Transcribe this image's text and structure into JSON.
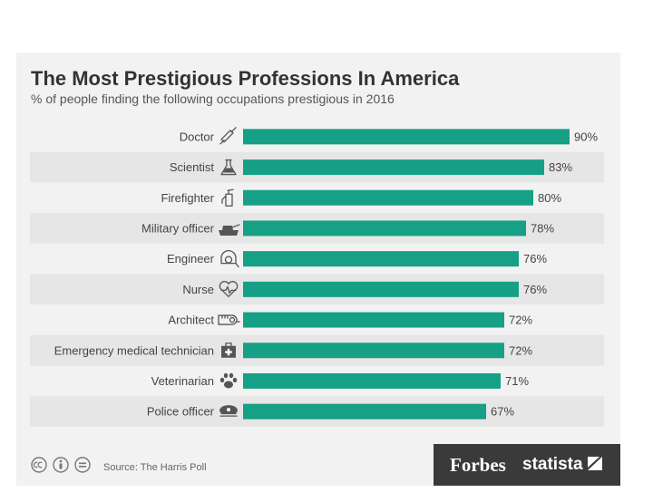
{
  "header": {
    "title": "The Most Prestigious Professions In America",
    "subtitle": "% of people finding the following occupations prestigious in 2016"
  },
  "footer": {
    "source": "Source: The Harris Poll",
    "brand_forbes": "Forbes",
    "brand_statista": "statista"
  },
  "colors": {
    "bar": "#16a085",
    "band": "#e6e6e6",
    "label": "#444444"
  },
  "chart_data": {
    "type": "bar",
    "orientation": "horizontal",
    "categories": [
      "Doctor",
      "Scientist",
      "Firefighter",
      "Military officer",
      "Engineer",
      "Nurse",
      "Architect",
      "Emergency medical technician",
      "Veterinarian",
      "Police officer"
    ],
    "values": [
      90,
      83,
      80,
      78,
      76,
      76,
      72,
      72,
      71,
      67
    ],
    "value_labels": [
      "90%",
      "83%",
      "80%",
      "78%",
      "76%",
      "76%",
      "72%",
      "72%",
      "71%",
      "67%"
    ],
    "icons": [
      "syringe-icon",
      "flask-icon",
      "fire-extinguisher-icon",
      "tank-icon",
      "hard-hat-icon",
      "heartbeat-icon",
      "measuring-tape-icon",
      "medical-kit-icon",
      "paw-icon",
      "police-cap-icon"
    ],
    "xlim": [
      0,
      90
    ],
    "grid": false,
    "legend": "none"
  }
}
